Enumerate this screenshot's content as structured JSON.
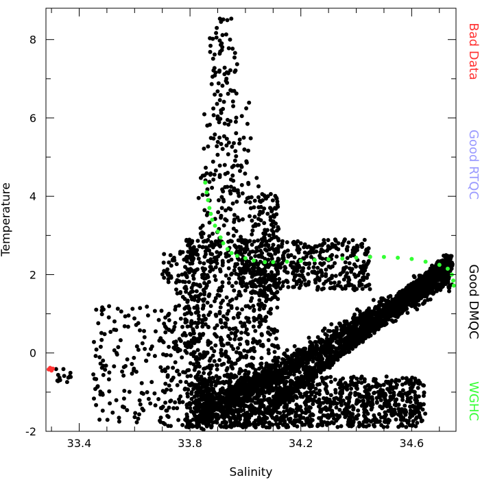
{
  "chart_data": {
    "type": "scatter",
    "title": "",
    "xlabel": "Salinity",
    "ylabel": "Temperature",
    "xlim": [
      33.28,
      34.76
    ],
    "ylim": [
      -2,
      8.8
    ],
    "x_ticks": [
      33.4,
      33.8,
      34.2,
      34.6
    ],
    "x_tick_labels": [
      "33.4",
      "33.8",
      "34.2",
      "34.6"
    ],
    "y_ticks": [
      -2,
      0,
      2,
      4,
      6,
      8
    ],
    "y_tick_labels": [
      "-2",
      "0",
      "2",
      "4",
      "6",
      "8"
    ],
    "grid": false,
    "legend_position": "right-vertical",
    "legend": [
      {
        "name": "Bad Data",
        "color": "#ff3333"
      },
      {
        "name": "Good RTQC",
        "color": "#9999ff"
      },
      {
        "name": "Good DMQC",
        "color": "#000000"
      },
      {
        "name": "WGHC",
        "color": "#33ff33"
      }
    ],
    "series": [
      {
        "name": "Bad Data",
        "color": "#ff3333",
        "points": [
          [
            33.29,
            -0.42
          ],
          [
            33.295,
            -0.38
          ],
          [
            33.3,
            -0.45
          ],
          [
            33.305,
            -0.4
          ]
        ]
      },
      {
        "name": "WGHC",
        "color": "#33ff33",
        "points": [
          [
            33.855,
            4.35
          ],
          [
            33.86,
            4.1
          ],
          [
            33.865,
            3.9
          ],
          [
            33.87,
            3.7
          ],
          [
            33.875,
            3.55
          ],
          [
            33.88,
            3.4
          ],
          [
            33.89,
            3.25
          ],
          [
            33.9,
            3.1
          ],
          [
            33.91,
            2.95
          ],
          [
            33.92,
            2.8
          ],
          [
            33.935,
            2.65
          ],
          [
            33.95,
            2.55
          ],
          [
            33.97,
            2.48
          ],
          [
            34.0,
            2.42
          ],
          [
            34.03,
            2.36
          ],
          [
            34.07,
            2.32
          ],
          [
            34.1,
            2.32
          ],
          [
            34.15,
            2.33
          ],
          [
            34.2,
            2.35
          ],
          [
            34.25,
            2.37
          ],
          [
            34.3,
            2.39
          ],
          [
            34.35,
            2.41
          ],
          [
            34.4,
            2.43
          ],
          [
            34.45,
            2.45
          ],
          [
            34.5,
            2.45
          ],
          [
            34.55,
            2.43
          ],
          [
            34.6,
            2.4
          ],
          [
            34.65,
            2.33
          ],
          [
            34.7,
            2.25
          ],
          [
            34.73,
            2.15
          ],
          [
            34.745,
            2.0
          ],
          [
            34.75,
            1.85
          ],
          [
            34.752,
            1.72
          ]
        ]
      },
      {
        "name": "Good DMQC",
        "color": "#000000",
        "clusters": [
          {
            "shape": "band",
            "count": 1500,
            "x0": 33.84,
            "y0": -1.6,
            "x1": 34.74,
            "y1": 2.0,
            "halfwidth": 0.5
          },
          {
            "shape": "band",
            "count": 900,
            "x0": 34.1,
            "y0": -1.3,
            "x1": 34.74,
            "y1": 2.2,
            "halfwidth": 0.25
          },
          {
            "shape": "band",
            "count": 500,
            "x0": 34.55,
            "y0": 1.3,
            "x1": 34.74,
            "y1": 2.4,
            "halfwidth": 0.25
          },
          {
            "shape": "box",
            "count": 1100,
            "xmin": 33.82,
            "xmax": 34.65,
            "ymin": -1.9,
            "ymax": -0.6
          },
          {
            "shape": "box",
            "count": 900,
            "xmin": 33.78,
            "xmax": 34.12,
            "ymin": -1.9,
            "ymax": 2.9
          },
          {
            "shape": "box",
            "count": 450,
            "xmin": 33.98,
            "xmax": 34.45,
            "ymin": 1.6,
            "ymax": 2.9
          },
          {
            "shape": "box",
            "count": 60,
            "xmin": 34.05,
            "xmax": 34.12,
            "ymin": 2.9,
            "ymax": 4.1
          },
          {
            "shape": "box",
            "count": 120,
            "xmin": 33.83,
            "xmax": 34.05,
            "ymin": 2.6,
            "ymax": 4.6
          },
          {
            "shape": "box",
            "count": 70,
            "xmin": 33.85,
            "xmax": 34.02,
            "ymin": 4.5,
            "ymax": 6.4
          },
          {
            "shape": "box",
            "count": 60,
            "xmin": 33.87,
            "xmax": 33.97,
            "ymin": 6.3,
            "ymax": 8.6
          },
          {
            "shape": "box",
            "count": 220,
            "xmin": 33.7,
            "xmax": 33.86,
            "ymin": -1.9,
            "ymax": 2.6
          },
          {
            "shape": "box",
            "count": 140,
            "xmin": 33.45,
            "xmax": 33.72,
            "ymin": -1.8,
            "ymax": 1.2
          },
          {
            "shape": "box",
            "count": 15,
            "xmin": 33.31,
            "xmax": 33.38,
            "ymin": -0.75,
            "ymax": -0.4
          }
        ]
      }
    ]
  }
}
